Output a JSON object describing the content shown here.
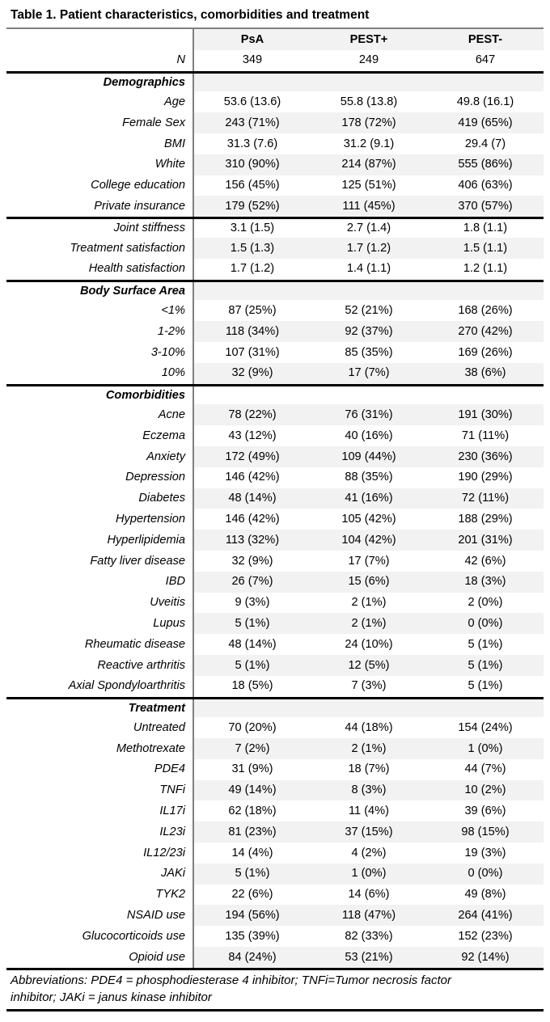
{
  "table": {
    "title": "Table 1. Patient characteristics, comorbidities and treatment",
    "columns": [
      "PsA",
      "PEST+",
      "PEST-"
    ],
    "rows": [
      {
        "label": "N",
        "kind": "data",
        "values": [
          "349",
          "249",
          "647"
        ]
      },
      {
        "label": "Demographics",
        "kind": "section",
        "values": [],
        "divider_above": true
      },
      {
        "label": "Age",
        "kind": "data",
        "values": [
          "53.6 (13.6)",
          "55.8 (13.8)",
          "49.8 (16.1)"
        ]
      },
      {
        "label": "Female Sex",
        "kind": "data",
        "values": [
          "243 (71%)",
          "178 (72%)",
          "419 (65%)"
        ]
      },
      {
        "label": "BMI",
        "kind": "data",
        "values": [
          "31.3 (7.6)",
          "31.2 (9.1)",
          "29.4 (7)"
        ]
      },
      {
        "label": "White",
        "kind": "data",
        "values": [
          "310 (90%)",
          "214 (87%)",
          "555 (86%)"
        ]
      },
      {
        "label": "College education",
        "kind": "data",
        "values": [
          "156 (45%)",
          "125 (51%)",
          "406 (63%)"
        ]
      },
      {
        "label": "Private insurance",
        "kind": "data",
        "values": [
          "179 (52%)",
          "111 (45%)",
          "370 (57%)"
        ]
      },
      {
        "label": "Joint stiffness",
        "kind": "data",
        "values": [
          "3.1 (1.5)",
          "2.7 (1.4)",
          "1.8 (1.1)"
        ],
        "divider_above": true
      },
      {
        "label": "Treatment satisfaction",
        "kind": "data",
        "values": [
          "1.5 (1.3)",
          "1.7 (1.2)",
          "1.5 (1.1)"
        ]
      },
      {
        "label": "Health satisfaction",
        "kind": "data",
        "values": [
          "1.7 (1.2)",
          "1.4 (1.1)",
          "1.2 (1.1)"
        ]
      },
      {
        "label": "Body Surface Area",
        "kind": "section",
        "values": [],
        "divider_above": true
      },
      {
        "label": "<1%",
        "kind": "data",
        "values": [
          "87 (25%)",
          "52 (21%)",
          "168 (26%)"
        ]
      },
      {
        "label": "1-2%",
        "kind": "data",
        "values": [
          "118 (34%)",
          "92 (37%)",
          "270 (42%)"
        ]
      },
      {
        "label": "3-10%",
        "kind": "data",
        "values": [
          "107 (31%)",
          "85 (35%)",
          "169 (26%)"
        ]
      },
      {
        "label": "10%",
        "kind": "data",
        "values": [
          "32 (9%)",
          "17 (7%)",
          "38 (6%)"
        ]
      },
      {
        "label": "Comorbidities",
        "kind": "section",
        "values": [],
        "divider_above": true
      },
      {
        "label": "Acne",
        "kind": "data",
        "values": [
          "78 (22%)",
          "76 (31%)",
          "191 (30%)"
        ]
      },
      {
        "label": "Eczema",
        "kind": "data",
        "values": [
          "43 (12%)",
          "40 (16%)",
          "71 (11%)"
        ]
      },
      {
        "label": "Anxiety",
        "kind": "data",
        "values": [
          "172 (49%)",
          "109 (44%)",
          "230 (36%)"
        ]
      },
      {
        "label": "Depression",
        "kind": "data",
        "values": [
          "146 (42%)",
          "88 (35%)",
          "190 (29%)"
        ]
      },
      {
        "label": "Diabetes",
        "kind": "data",
        "values": [
          "48 (14%)",
          "41 (16%)",
          "72 (11%)"
        ]
      },
      {
        "label": "Hypertension",
        "kind": "data",
        "values": [
          "146 (42%)",
          "105 (42%)",
          "188 (29%)"
        ]
      },
      {
        "label": "Hyperlipidemia",
        "kind": "data",
        "values": [
          "113 (32%)",
          "104 (42%)",
          "201 (31%)"
        ]
      },
      {
        "label": "Fatty liver disease",
        "kind": "data",
        "values": [
          "32 (9%)",
          "17 (7%)",
          "42 (6%)"
        ]
      },
      {
        "label": "IBD",
        "kind": "data",
        "values": [
          "26 (7%)",
          "15 (6%)",
          "18 (3%)"
        ]
      },
      {
        "label": "Uveitis",
        "kind": "data",
        "values": [
          "9 (3%)",
          "2 (1%)",
          "2 (0%)"
        ]
      },
      {
        "label": "Lupus",
        "kind": "data",
        "values": [
          "5 (1%)",
          "2 (1%)",
          "0 (0%)"
        ]
      },
      {
        "label": "Rheumatic disease",
        "kind": "data",
        "values": [
          "48 (14%)",
          "24 (10%)",
          "5 (1%)"
        ]
      },
      {
        "label": "Reactive arthritis",
        "kind": "data",
        "values": [
          "5 (1%)",
          "12 (5%)",
          "5 (1%)"
        ]
      },
      {
        "label": "Axial Spondyloarthritis",
        "kind": "data",
        "values": [
          "18 (5%)",
          "7 (3%)",
          "5 (1%)"
        ]
      },
      {
        "label": "Treatment",
        "kind": "section",
        "values": [],
        "divider_above": true
      },
      {
        "label": "Untreated",
        "kind": "data",
        "values": [
          "70 (20%)",
          "44 (18%)",
          "154 (24%)"
        ]
      },
      {
        "label": "Methotrexate",
        "kind": "data",
        "values": [
          "7 (2%)",
          "2 (1%)",
          "1 (0%)"
        ]
      },
      {
        "label": "PDE4",
        "kind": "data",
        "values": [
          "31 (9%)",
          "18 (7%)",
          "44 (7%)"
        ]
      },
      {
        "label": "TNFi",
        "kind": "data",
        "values": [
          "49 (14%)",
          "8 (3%)",
          "10 (2%)"
        ]
      },
      {
        "label": "IL17i",
        "kind": "data",
        "values": [
          "62 (18%)",
          "11 (4%)",
          "39 (6%)"
        ]
      },
      {
        "label": "IL23i",
        "kind": "data",
        "values": [
          "81 (23%)",
          "37 (15%)",
          "98 (15%)"
        ]
      },
      {
        "label": "IL12/23i",
        "kind": "data",
        "values": [
          "14 (4%)",
          "4 (2%)",
          "19 (3%)"
        ]
      },
      {
        "label": "JAKi",
        "kind": "data",
        "values": [
          "5 (1%)",
          "1 (0%)",
          "0 (0%)"
        ]
      },
      {
        "label": "TYK2",
        "kind": "data",
        "values": [
          "22 (6%)",
          "14 (6%)",
          "49 (8%)"
        ]
      },
      {
        "label": "NSAID use",
        "kind": "data",
        "values": [
          "194 (56%)",
          "118 (47%)",
          "264 (41%)"
        ]
      },
      {
        "label": "Glucocorticoids use",
        "kind": "data",
        "values": [
          "135 (39%)",
          "82 (33%)",
          "152 (23%)"
        ]
      },
      {
        "label": "Opioid use",
        "kind": "data",
        "values": [
          "84 (24%)",
          "53 (21%)",
          "92 (14%)"
        ]
      }
    ],
    "footer": {
      "lines": [
        "Abbreviations: PDE4 = phosphodiesterase 4 inhibitor; TNFi=Tumor necrosis factor",
        "inhibitor; JAKi = janus kinase inhibitor"
      ]
    },
    "colors": {
      "stripe": "#f2f2f2",
      "column_rule": "#808080",
      "title_rule": "#7f7f7f",
      "section_rule": "#000000"
    }
  }
}
